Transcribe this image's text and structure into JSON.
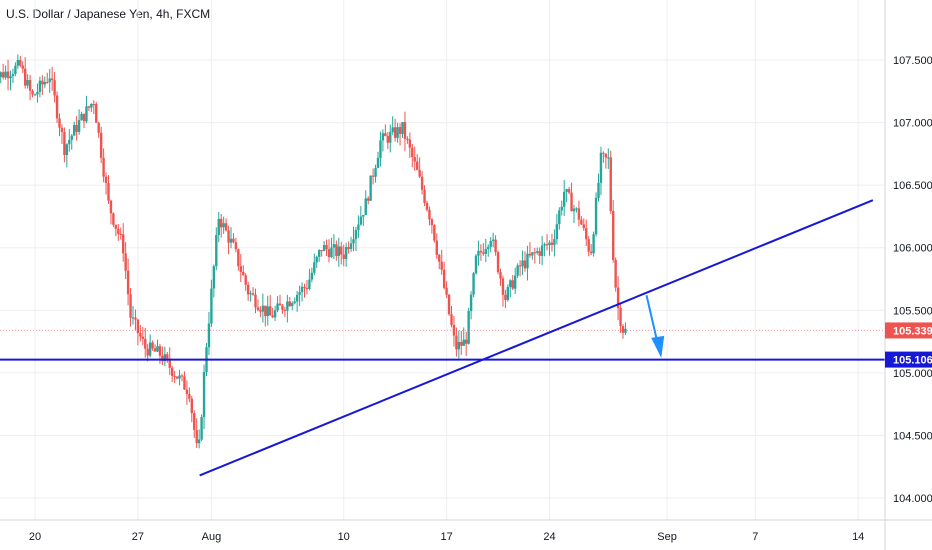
{
  "header": {
    "title": "U.S. Dollar / Japanese Yen, 4h, FXCM"
  },
  "colors": {
    "up": "#26a69a",
    "down": "#ef5350",
    "grid": "#eceff3",
    "axis_text": "#131722",
    "trendline": "#1717d6",
    "support": "#1717d6",
    "arrow": "#1e90ff",
    "price_badge": "#ef5350"
  },
  "chart_data": {
    "type": "candlestick",
    "symbol": "USDJPY",
    "timeframe": "4h",
    "ylim": [
      103.85,
      108.15
    ],
    "y_ticks": [
      "104.000",
      "104.500",
      "105.000",
      "105.500",
      "106.000",
      "106.500",
      "107.000",
      "107.500"
    ],
    "x_ticks": [
      {
        "label": "20",
        "day": 20
      },
      {
        "label": "27",
        "day": 27
      },
      {
        "label": "Aug",
        "day": 32
      },
      {
        "label": "10",
        "day": 41
      },
      {
        "label": "17",
        "day": 48
      },
      {
        "label": "24",
        "day": 55
      },
      {
        "label": "Sep",
        "day": 63
      },
      {
        "label": "7",
        "day": 69
      },
      {
        "label": "14",
        "day": 76
      }
    ],
    "last_price": {
      "label": "105.339",
      "value": 105.339
    },
    "support_level": {
      "label": "105.106",
      "value": 105.106
    },
    "trendline": {
      "from": {
        "day": 31.2,
        "price": 104.18
      },
      "to": {
        "day": 77,
        "price": 106.38
      }
    },
    "arrow": {
      "from": {
        "day": 61.6,
        "price": 105.62
      },
      "to": {
        "day": 62.6,
        "price": 105.12
      }
    },
    "anchors": [
      {
        "day": 17.0,
        "price": 107.35
      },
      {
        "day": 19.0,
        "price": 107.45
      },
      {
        "day": 19.8,
        "price": 107.2
      },
      {
        "day": 21.0,
        "price": 107.38
      },
      {
        "day": 22.0,
        "price": 106.8
      },
      {
        "day": 23.0,
        "price": 107.0
      },
      {
        "day": 24.0,
        "price": 107.18
      },
      {
        "day": 25.0,
        "price": 106.35
      },
      {
        "day": 26.0,
        "price": 106.0
      },
      {
        "day": 26.5,
        "price": 105.45
      },
      {
        "day": 27.5,
        "price": 105.2
      },
      {
        "day": 28.5,
        "price": 105.15
      },
      {
        "day": 29.5,
        "price": 105.0
      },
      {
        "day": 30.5,
        "price": 104.85
      },
      {
        "day": 31.1,
        "price": 104.3
      },
      {
        "day": 31.6,
        "price": 105.15
      },
      {
        "day": 32.5,
        "price": 106.25
      },
      {
        "day": 33.5,
        "price": 106.0
      },
      {
        "day": 34.5,
        "price": 105.65
      },
      {
        "day": 36.0,
        "price": 105.45
      },
      {
        "day": 37.0,
        "price": 105.55
      },
      {
        "day": 38.5,
        "price": 105.7
      },
      {
        "day": 39.5,
        "price": 106.0
      },
      {
        "day": 41.0,
        "price": 105.95
      },
      {
        "day": 42.5,
        "price": 106.35
      },
      {
        "day": 43.5,
        "price": 106.85
      },
      {
        "day": 45.0,
        "price": 106.95
      },
      {
        "day": 46.0,
        "price": 106.6
      },
      {
        "day": 47.0,
        "price": 106.2
      },
      {
        "day": 47.8,
        "price": 105.7
      },
      {
        "day": 48.6,
        "price": 105.2
      },
      {
        "day": 49.3,
        "price": 105.25
      },
      {
        "day": 50.0,
        "price": 105.9
      },
      {
        "day": 51.0,
        "price": 106.1
      },
      {
        "day": 52.0,
        "price": 105.6
      },
      {
        "day": 53.0,
        "price": 105.85
      },
      {
        "day": 54.0,
        "price": 105.95
      },
      {
        "day": 55.2,
        "price": 106.05
      },
      {
        "day": 56.0,
        "price": 106.45
      },
      {
        "day": 57.0,
        "price": 106.25
      },
      {
        "day": 57.8,
        "price": 105.95
      },
      {
        "day": 58.5,
        "price": 106.7
      },
      {
        "day": 59.0,
        "price": 106.7
      },
      {
        "day": 59.3,
        "price": 106.0
      },
      {
        "day": 59.6,
        "price": 105.55
      },
      {
        "day": 60.0,
        "price": 105.35
      },
      {
        "day": 60.2,
        "price": 105.33
      }
    ]
  }
}
